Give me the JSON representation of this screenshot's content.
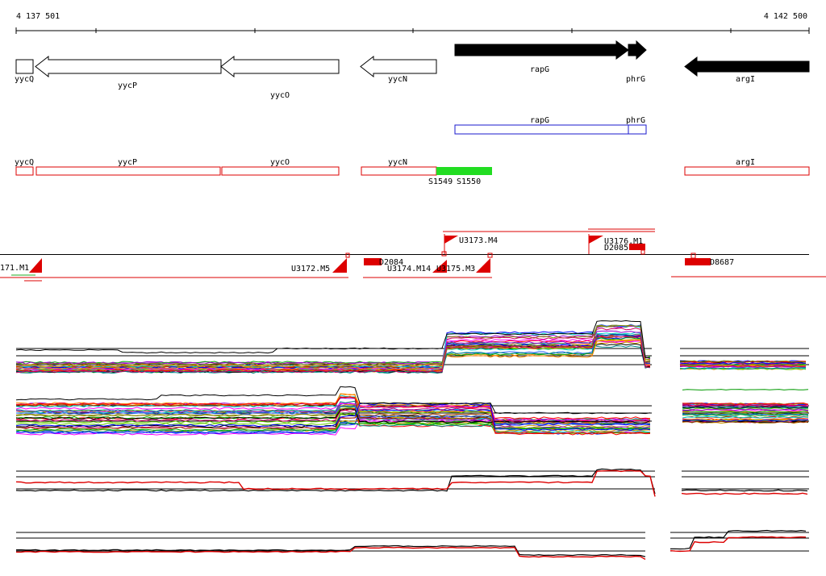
{
  "axis": {
    "start_label": "4 137 501",
    "end_label": "4 142 500"
  },
  "genes": {
    "open": [
      {
        "id": "yycQ",
        "label": "yycQ"
      },
      {
        "id": "yycP",
        "label": "yycP"
      },
      {
        "id": "yycO",
        "label": "yycO"
      },
      {
        "id": "yycN",
        "label": "yycN"
      }
    ],
    "solid": [
      {
        "id": "rapG",
        "label": "rapG"
      },
      {
        "id": "phrG",
        "label": "phrG"
      },
      {
        "id": "argI",
        "label": "argI"
      }
    ]
  },
  "blue_track": [
    {
      "id": "rapG",
      "label": "rapG"
    },
    {
      "id": "phrG",
      "label": "phrG"
    }
  ],
  "red_track": [
    {
      "id": "yycQ",
      "label": "yycQ"
    },
    {
      "id": "yycP",
      "label": "yycP"
    },
    {
      "id": "yycO",
      "label": "yycO"
    },
    {
      "id": "yycN",
      "label": "yycN"
    },
    {
      "id": "argI",
      "label": "argI"
    }
  ],
  "green_labels": [
    "S1549",
    "S1550"
  ],
  "features": {
    "upper": [
      {
        "id": "u3173",
        "label": "U3173.M4"
      },
      {
        "id": "u3176",
        "label": "U3176.M1"
      },
      {
        "id": "d2085",
        "label": "D2085"
      }
    ],
    "lower": [
      {
        "id": "u171",
        "label": "171.M1"
      },
      {
        "id": "u3172",
        "label": "U3172.M5"
      },
      {
        "id": "d2084",
        "label": "D2084"
      },
      {
        "id": "u3174",
        "label": "U3174.M14"
      },
      {
        "id": "u3175",
        "label": "U3175.M3"
      },
      {
        "id": "d8687",
        "label": "D8687"
      }
    ]
  },
  "colors": {
    "forward": "#000000",
    "reverse": "#dd0000",
    "annotation_box": "#dd0000",
    "operon_box": "#1a1acc",
    "highlight": "#22dd22"
  }
}
